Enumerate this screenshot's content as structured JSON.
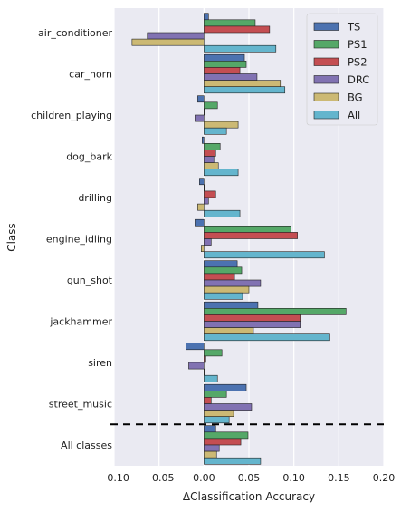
{
  "chart_data": {
    "type": "bar",
    "orientation": "horizontal",
    "title": "",
    "xlabel": "ΔClassification Accuracy",
    "ylabel": "Class",
    "xlim": [
      -0.1,
      0.2
    ],
    "xticks": [
      -0.1,
      -0.05,
      0.0,
      0.05,
      0.1,
      0.15,
      0.2
    ],
    "xtick_labels": [
      "−0.10",
      "−0.05",
      "0.00",
      "0.05",
      "0.10",
      "0.15",
      "0.20"
    ],
    "grid": true,
    "legend_position": "top-right",
    "separator_before": "All classes",
    "categories": [
      "air_conditioner",
      "car_horn",
      "children_playing",
      "dog_bark",
      "drilling",
      "engine_idling",
      "gun_shot",
      "jackhammer",
      "siren",
      "street_music",
      "All classes"
    ],
    "series": [
      {
        "name": "TS",
        "color": "#4c72b0",
        "values": [
          0.005,
          0.045,
          -0.007,
          -0.002,
          -0.005,
          -0.01,
          0.037,
          0.06,
          -0.02,
          0.047,
          0.013
        ]
      },
      {
        "name": "PS1",
        "color": "#55a868",
        "values": [
          0.057,
          0.047,
          0.015,
          0.018,
          0.0,
          0.097,
          0.042,
          0.158,
          0.02,
          0.025,
          0.049
        ]
      },
      {
        "name": "PS2",
        "color": "#c44e52",
        "values": [
          0.073,
          0.04,
          0.0,
          0.013,
          0.013,
          0.104,
          0.034,
          0.107,
          0.002,
          0.008,
          0.041
        ]
      },
      {
        "name": "DRC",
        "color": "#8172b2",
        "values": [
          -0.063,
          0.059,
          -0.01,
          0.011,
          0.005,
          0.008,
          0.063,
          0.107,
          -0.017,
          0.053,
          0.017
        ]
      },
      {
        "name": "BG",
        "color": "#ccb974",
        "values": [
          -0.08,
          0.085,
          0.038,
          0.016,
          -0.007,
          -0.003,
          0.05,
          0.055,
          0.0,
          0.033,
          0.014
        ]
      },
      {
        "name": "All",
        "color": "#64b5cd",
        "values": [
          0.08,
          0.09,
          0.025,
          0.038,
          0.04,
          0.134,
          0.043,
          0.14,
          0.015,
          0.028,
          0.063
        ]
      }
    ]
  }
}
